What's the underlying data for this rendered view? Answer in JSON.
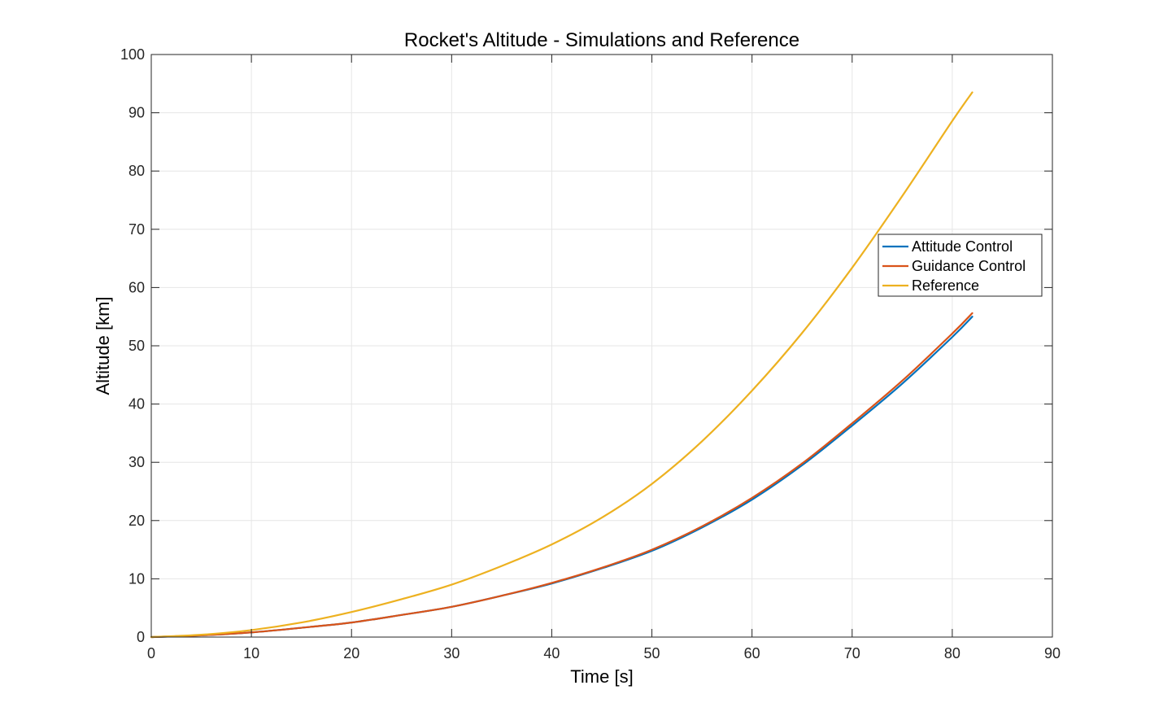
{
  "chart_data": {
    "type": "line",
    "title": "Rocket's Altitude - Simulations and Reference",
    "xlabel": "Time [s]",
    "ylabel": "Altitude [km]",
    "xlim": [
      0,
      90
    ],
    "ylim": [
      0,
      100
    ],
    "xticks": [
      0,
      10,
      20,
      30,
      40,
      50,
      60,
      70,
      80,
      90
    ],
    "yticks": [
      0,
      10,
      20,
      30,
      40,
      50,
      60,
      70,
      80,
      90,
      100
    ],
    "grid": true,
    "legend_position": "right",
    "series": [
      {
        "name": "Attitude Control",
        "color": "#0072BD",
        "x": [
          0,
          5,
          10,
          15,
          20,
          25,
          30,
          35,
          40,
          45,
          50,
          55,
          60,
          65,
          70,
          75,
          80,
          82
        ],
        "y": [
          0,
          0.3,
          0.8,
          1.6,
          2.5,
          3.8,
          5.2,
          7.1,
          9.2,
          11.8,
          14.8,
          18.8,
          23.6,
          29.5,
          36.3,
          43.5,
          51.5,
          55.0
        ]
      },
      {
        "name": "Guidance Control",
        "color": "#D95319",
        "x": [
          0,
          5,
          10,
          15,
          20,
          25,
          30,
          35,
          40,
          45,
          50,
          55,
          60,
          65,
          70,
          75,
          80,
          82
        ],
        "y": [
          0,
          0.3,
          0.8,
          1.6,
          2.5,
          3.8,
          5.2,
          7.1,
          9.3,
          11.9,
          15.0,
          19.0,
          23.9,
          29.8,
          36.7,
          44.0,
          52.1,
          55.6
        ]
      },
      {
        "name": "Reference",
        "color": "#EDB120",
        "x": [
          0,
          5,
          10,
          15,
          20,
          25,
          30,
          35,
          40,
          45,
          50,
          55,
          60,
          65,
          70,
          75,
          80,
          82
        ],
        "y": [
          0,
          0.4,
          1.2,
          2.5,
          4.3,
          6.5,
          9.0,
          12.2,
          15.9,
          20.5,
          26.3,
          33.6,
          42.3,
          52.2,
          63.4,
          75.7,
          88.6,
          93.5
        ]
      }
    ]
  }
}
